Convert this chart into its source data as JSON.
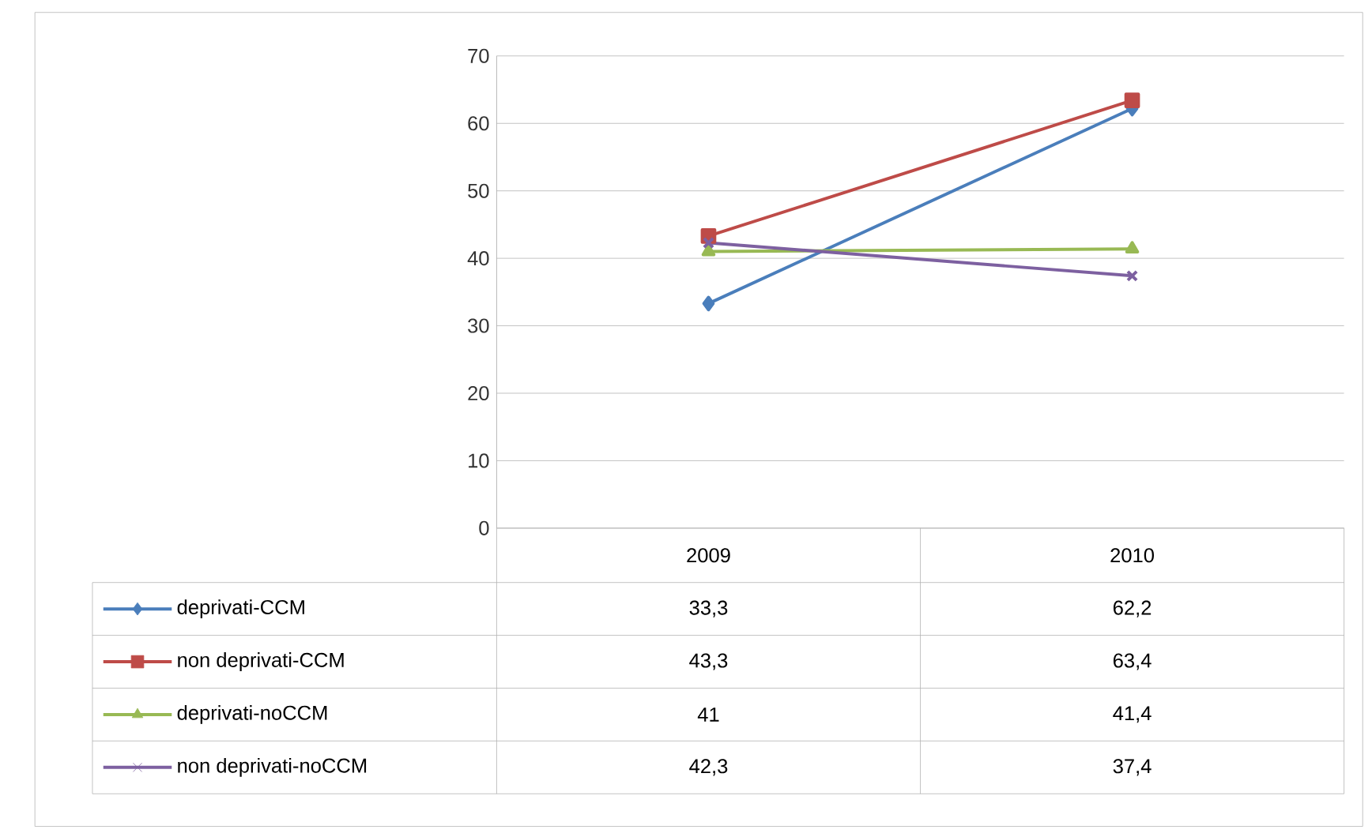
{
  "chart_data": {
    "type": "line",
    "categories": [
      "2009",
      "2010"
    ],
    "series": [
      {
        "name": "deprivati-CCM",
        "color": "#4a7ebb",
        "marker": "diamond",
        "values": [
          33.3,
          62.2
        ],
        "value_labels": [
          "33,3",
          "62,2"
        ]
      },
      {
        "name": "non deprivati-CCM",
        "color": "#be4b48",
        "marker": "square",
        "values": [
          43.3,
          63.4
        ],
        "value_labels": [
          "43,3",
          "63,4"
        ]
      },
      {
        "name": "deprivati-noCCM",
        "color": "#98b954",
        "marker": "triangle",
        "values": [
          41,
          41.4
        ],
        "value_labels": [
          "41",
          "41,4"
        ]
      },
      {
        "name": "non deprivati-noCCM",
        "color": "#7d60a0",
        "marker": "cross",
        "values": [
          42.3,
          37.4
        ],
        "value_labels": [
          "42,3",
          "37,4"
        ]
      }
    ],
    "ylim": [
      0,
      70
    ],
    "yticks": [
      0,
      10,
      20,
      30,
      40,
      50,
      60,
      70
    ],
    "grid": "y",
    "legend": "bottom",
    "line_style": "solid"
  }
}
